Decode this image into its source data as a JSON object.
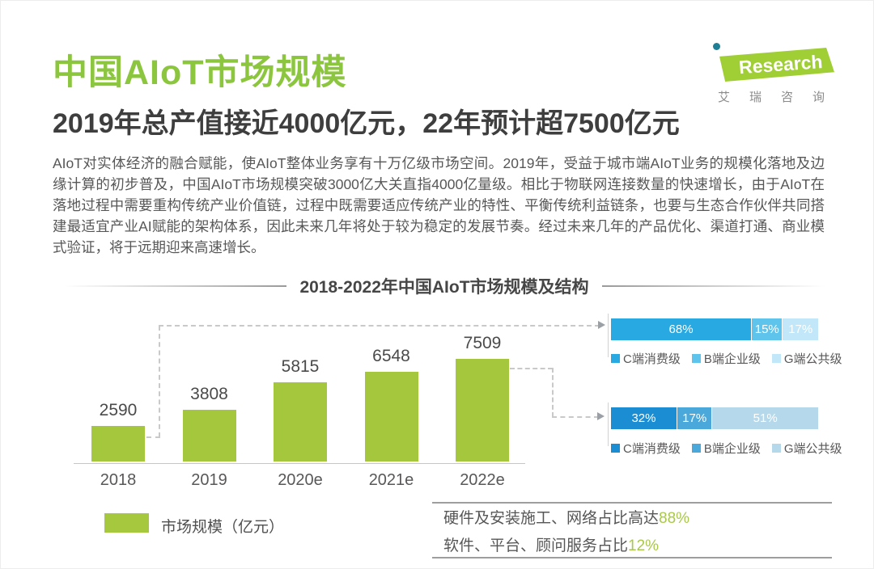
{
  "page": {
    "title": "中国AIoT市场规模",
    "subtitle": "2019年总产值接近4000亿元，22年预计超7500亿元",
    "paragraph": "AIoT对实体经济的融合赋能，使AIoT整体业务享有十万亿级市场空间。2019年，受益于城市端AIoT业务的规模化落地及边缘计算的初步普及，中国AIoT市场规模突破3000亿大关直指4000亿量级。相比于物联网连接数量的快速增长，由于AIoT在落地过程中需要重构传统产业价值链，过程中既需要适应传统产业的特性、平衡传统利益链条，也要与生态合作伙伴共同搭建最适宜产业AI赋能的架构体系，因此未来几年将处于较为稳定的发展节奏。经过未来几年的产品优化、渠道打通、商业模式验证，将于远期迎来高速增长。",
    "accent_green": "#8cc63f"
  },
  "logo": {
    "brand": "Research",
    "subtext": "艾瑞咨询",
    "green": "#9fce35",
    "dot_teal": "#1f7f95"
  },
  "chart_data": [
    {
      "type": "bar",
      "title": "2018-2022年中国AIoT市场规模及结构",
      "categories": [
        "2018",
        "2019",
        "2020e",
        "2021e",
        "2022e"
      ],
      "values": [
        2590,
        3808,
        5815,
        6548,
        7509
      ],
      "series_name": "市场规模（亿元）",
      "bar_color": "#a4c73d",
      "ylim": [
        0,
        7509
      ],
      "grid": false,
      "data_labels": true,
      "legend_position": "bottom-left"
    },
    {
      "type": "bar",
      "variant": "stacked-horizontal",
      "linked_category": "2018",
      "segments": [
        {
          "label": "C端消费级",
          "value": 68,
          "display": "68%",
          "color": "#29a9e1"
        },
        {
          "label": "B端企业级",
          "value": 15,
          "display": "15%",
          "color": "#5ec4ec"
        },
        {
          "label": "G端公共级",
          "value": 17,
          "display": "17%",
          "color": "#c2e7f8"
        }
      ]
    },
    {
      "type": "bar",
      "variant": "stacked-horizontal",
      "linked_category": "2022e",
      "segments": [
        {
          "label": "C端消费级",
          "value": 32,
          "display": "32%",
          "color": "#1b8ed3"
        },
        {
          "label": "B端企业级",
          "value": 17,
          "display": "17%",
          "color": "#4aa8da"
        },
        {
          "label": "G端公共级",
          "value": 51,
          "display": "51%",
          "color": "#b5d8ea"
        }
      ]
    }
  ],
  "legend": {
    "market_size_label": "市场规模（亿元）",
    "swatch_color": "#a6c83e"
  },
  "notes": {
    "line1_prefix": "硬件及安装施工、网络占比高达",
    "line1_highlight": "88%",
    "line2_prefix": "软件、平台、顾问服务占比",
    "line2_highlight": "12%",
    "highlight_color": "#a9c84b"
  }
}
